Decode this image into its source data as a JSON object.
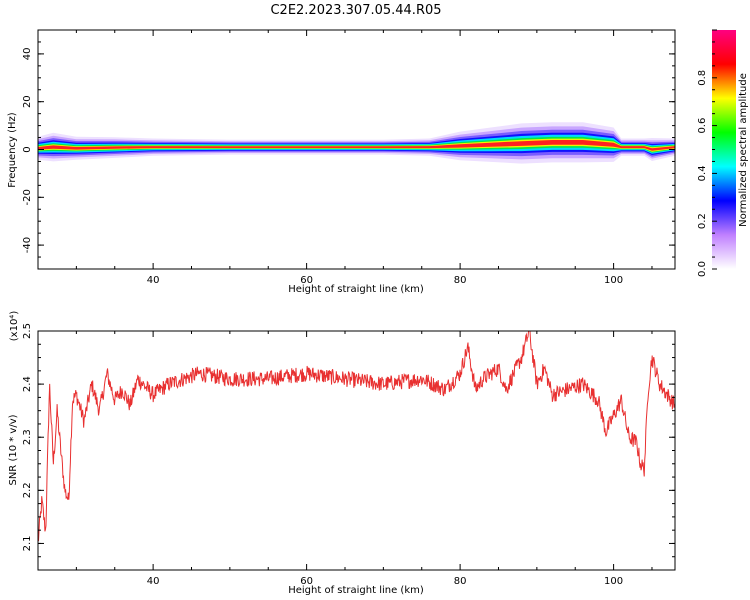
{
  "figure": {
    "title": "C2E2.2023.307.05.44.R05"
  },
  "chart_data": [
    {
      "type": "heatmap",
      "xlabel": "Height of straight line (km)",
      "ylabel": "Frequency (Hz)",
      "xlim": [
        25,
        108
      ],
      "ylim": [
        -50,
        50
      ],
      "x_ticks": [
        40,
        60,
        80,
        100
      ],
      "y_ticks": [
        -40,
        -20,
        0,
        20,
        40
      ],
      "colorbar": {
        "label": "Normalized spectral amplitude",
        "range": [
          0,
          1
        ],
        "ticks": [
          0.0,
          0.2,
          0.4,
          0.6,
          0.8
        ],
        "tick_labels": [
          "0.0",
          "0.2",
          "0.4",
          "0.6",
          "0.8"
        ],
        "colors": [
          "#ffffff",
          "#c080ff",
          "#0000ff",
          "#00ffff",
          "#00ff00",
          "#ffff00",
          "#ff0000",
          "#ff0080"
        ]
      },
      "ridge": {
        "x": [
          25,
          27,
          30,
          35,
          40,
          50,
          60,
          70,
          76,
          80,
          84,
          88,
          92,
          96,
          100,
          101,
          104,
          105,
          108
        ],
        "center_hz": [
          0.5,
          1.0,
          0.5,
          0.8,
          1.0,
          1.0,
          1.0,
          1.0,
          1.0,
          1.5,
          2.0,
          2.5,
          3.0,
          3.0,
          2.0,
          1.0,
          1.0,
          0.0,
          1.0
        ],
        "halfwidth_hz": [
          2.0,
          2.5,
          2.0,
          1.8,
          1.5,
          1.3,
          1.3,
          1.3,
          1.5,
          2.5,
          3.0,
          3.5,
          3.5,
          3.5,
          3.0,
          1.5,
          1.5,
          2.0,
          1.5
        ]
      }
    },
    {
      "type": "line",
      "xlabel": "Height of straight line (km)",
      "ylabel": "SNR (10 * v/v)",
      "scale_label": "(x10⁴)",
      "xlim": [
        25,
        108
      ],
      "ylim": [
        2.05,
        2.5
      ],
      "x_ticks": [
        40,
        60,
        80,
        100
      ],
      "y_ticks": [
        2.1,
        2.2,
        2.3,
        2.4,
        2.5
      ],
      "color": "#e83030",
      "series": [
        {
          "x": [
            25,
            25.5,
            26,
            26.5,
            27,
            27.5,
            28,
            28.5,
            29,
            29.5,
            30,
            31,
            32,
            33,
            34,
            35,
            36,
            37,
            38,
            40,
            42,
            44,
            46,
            50,
            55,
            60,
            65,
            70,
            75,
            78,
            80,
            81,
            82,
            83,
            84,
            85,
            86,
            87,
            88,
            89,
            90,
            91,
            92,
            94,
            96,
            98,
            99,
            100,
            101,
            102,
            103,
            103.5,
            104,
            104.5,
            105,
            106,
            107,
            108
          ],
          "y": [
            2.1,
            2.18,
            2.12,
            2.4,
            2.25,
            2.35,
            2.27,
            2.2,
            2.18,
            2.37,
            2.38,
            2.33,
            2.4,
            2.35,
            2.42,
            2.37,
            2.39,
            2.36,
            2.41,
            2.38,
            2.4,
            2.41,
            2.42,
            2.41,
            2.41,
            2.42,
            2.41,
            2.4,
            2.41,
            2.39,
            2.42,
            2.47,
            2.39,
            2.41,
            2.42,
            2.43,
            2.39,
            2.42,
            2.45,
            2.5,
            2.4,
            2.43,
            2.38,
            2.39,
            2.4,
            2.37,
            2.31,
            2.34,
            2.37,
            2.3,
            2.29,
            2.25,
            2.24,
            2.39,
            2.45,
            2.4,
            2.38,
            2.36
          ]
        }
      ]
    }
  ]
}
